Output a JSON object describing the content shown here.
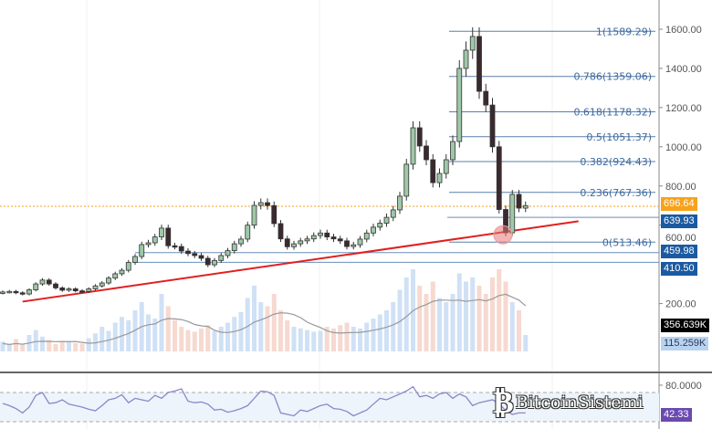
{
  "chart_data": {
    "type": "candlestick",
    "title": "",
    "price_axis": {
      "ticks": [
        "1600.00",
        "1400.00",
        "1200.00",
        "1000.00",
        "800.00",
        "600.00",
        "200.00"
      ],
      "tick_values": [
        1600,
        1400,
        1200,
        1000,
        800,
        600,
        200
      ],
      "range": [
        200,
        1750
      ]
    },
    "closes": [
      259,
      262,
      255,
      249,
      270,
      300,
      320,
      300,
      280,
      268,
      275,
      265,
      262,
      275,
      290,
      305,
      330,
      352,
      370,
      410,
      440,
      501,
      510,
      540,
      585,
      495,
      491,
      468,
      455,
      445,
      431,
      398,
      420,
      445,
      470,
      505,
      529,
      600,
      701,
      715,
      700,
      608,
      530,
      490,
      505,
      520,
      530,
      547,
      560,
      540,
      530,
      520,
      491,
      500,
      529,
      560,
      590,
      610,
      640,
      678,
      748,
      911,
      1097,
      1004,
      934,
      817,
      864,
      934,
      1027,
      1400,
      1493,
      1563,
      1283,
      1213,
      1000,
      680,
      561,
      757,
      687,
      700
    ],
    "volume_k": [
      120,
      90,
      150,
      80,
      200,
      260,
      180,
      140,
      90,
      110,
      130,
      100,
      95,
      160,
      220,
      300,
      250,
      350,
      420,
      380,
      500,
      600,
      450,
      400,
      700,
      550,
      380,
      300,
      260,
      240,
      280,
      320,
      250,
      300,
      350,
      420,
      480,
      650,
      800,
      600,
      550,
      700,
      500,
      380,
      300,
      280,
      260,
      240,
      250,
      300,
      280,
      320,
      350,
      300,
      280,
      350,
      400,
      450,
      500,
      600,
      750,
      900,
      1000,
      800,
      700,
      850,
      650,
      600,
      700,
      950,
      850,
      900,
      800,
      700,
      900,
      1000,
      850,
      600,
      500,
      200
    ],
    "volume_ma_label": "356.639K",
    "volume_label": "115.259K",
    "rsi": {
      "ticks": [
        "80.0000"
      ],
      "tick_values": [
        80
      ],
      "upper": 70,
      "lower": 30,
      "values": [
        55,
        52,
        48,
        42,
        50,
        66,
        70,
        55,
        56,
        60,
        54,
        52,
        50,
        47,
        45,
        52,
        60,
        62,
        67,
        56,
        62,
        60,
        58,
        66,
        62,
        70,
        72,
        75,
        58,
        56,
        57,
        54,
        46,
        47,
        43,
        45,
        48,
        52,
        62,
        72,
        71,
        66,
        42,
        40,
        38,
        46,
        44,
        48,
        52,
        54,
        48,
        47,
        44,
        38,
        42,
        46,
        54,
        62,
        60,
        64,
        68,
        72,
        78,
        64,
        66,
        62,
        68,
        70,
        62,
        68,
        64,
        52,
        56,
        58,
        60,
        55,
        45,
        40,
        42,
        42
      ],
      "current_label": "42.33"
    },
    "fibonacci": [
      {
        "ratio": "1",
        "price": 1589.29,
        "label": "1(1589.29)"
      },
      {
        "ratio": "0.786",
        "price": 1359.06,
        "label": "0.786(1359.06)"
      },
      {
        "ratio": "0.618",
        "price": 1178.32,
        "label": "0.618(1178.32)"
      },
      {
        "ratio": "0.5",
        "price": 1051.37,
        "label": "0.5(1051.37)"
      },
      {
        "ratio": "0.382",
        "price": 924.43,
        "label": "0.382(924.43)"
      },
      {
        "ratio": "0.236",
        "price": 767.36,
        "label": "0.236(767.36)"
      },
      {
        "ratio": "0",
        "price": 513.46,
        "label": "0(513.46)"
      }
    ],
    "levels": [
      {
        "price": 639.93,
        "label": "639.93"
      },
      {
        "price": 459.98,
        "label": "459.98"
      },
      {
        "price": 410.5,
        "label": "410.50"
      }
    ],
    "current_price": {
      "price": 696.64,
      "label": "696.64"
    },
    "trendline": {
      "from_index": 3,
      "from_price": 210,
      "to_index": 87,
      "to_price": 620
    },
    "highlight": {
      "index": 76,
      "price": 565
    }
  },
  "colors": {
    "up": "#9ec8a8",
    "down": "#3a2a2e",
    "fib": "#3b6aa0",
    "trend": "#e02020",
    "current": "#f7a21b",
    "level": "#1b5aa0",
    "rsi": "#8a88c8"
  },
  "watermark": {
    "text": "BitcoinSistemi",
    "symbol": "₿"
  }
}
